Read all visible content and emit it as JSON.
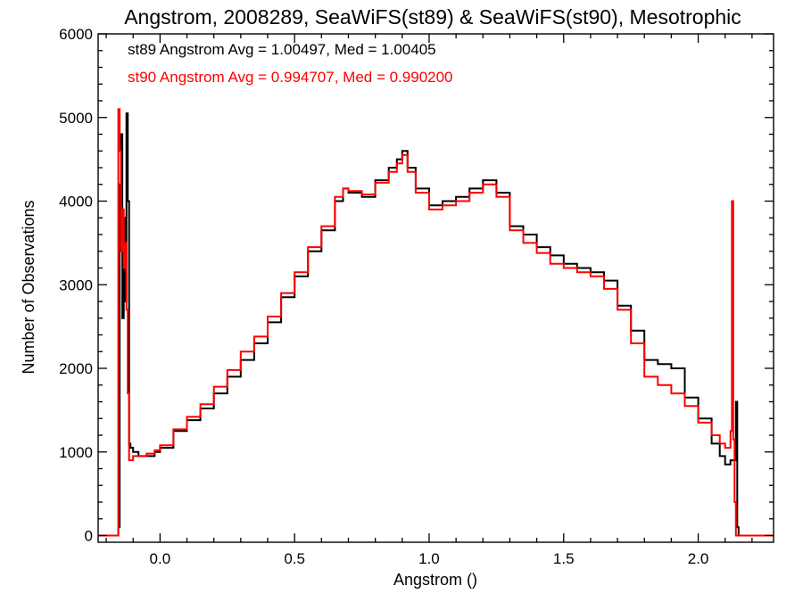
{
  "chart_data": {
    "type": "histogram",
    "title": "Angstrom, 2008289, SeaWiFS(st89) & SeaWiFS(st90), Mesotrophic",
    "xlabel": "Angstrom ()",
    "ylabel": "Number of Observations",
    "xlim": [
      -0.23,
      2.28
    ],
    "ylim": [
      -80,
      6000
    ],
    "xticks": [
      {
        "value": 0.0,
        "label": "0.0"
      },
      {
        "value": 0.5,
        "label": "0.5"
      },
      {
        "value": 1.0,
        "label": "1.0"
      },
      {
        "value": 1.5,
        "label": "1.5"
      },
      {
        "value": 2.0,
        "label": "2.0"
      }
    ],
    "yticks": [
      {
        "value": 0,
        "label": "0"
      },
      {
        "value": 1000,
        "label": "1000"
      },
      {
        "value": 2000,
        "label": "2000"
      },
      {
        "value": 3000,
        "label": "3000"
      },
      {
        "value": 4000,
        "label": "4000"
      },
      {
        "value": 5000,
        "label": "5000"
      },
      {
        "value": 6000,
        "label": "6000"
      }
    ],
    "annotations": [
      {
        "text": "st89 Angstrom Avg = 1.00497, Med = 1.00405",
        "color": "#000000"
      },
      {
        "text": "st90 Angstrom Avg = 0.994707, Med = 0.990200",
        "color": "#ff0000"
      }
    ],
    "series": [
      {
        "color": "#000000",
        "x": [
          -0.23,
          -0.16,
          -0.155,
          -0.15,
          -0.145,
          -0.14,
          -0.135,
          -0.13,
          -0.125,
          -0.12,
          -0.115,
          -0.11,
          -0.1,
          -0.08,
          -0.05,
          -0.02,
          0.0,
          0.05,
          0.1,
          0.15,
          0.2,
          0.25,
          0.3,
          0.35,
          0.4,
          0.45,
          0.5,
          0.55,
          0.6,
          0.65,
          0.68,
          0.7,
          0.75,
          0.8,
          0.85,
          0.88,
          0.9,
          0.92,
          0.95,
          1.0,
          1.05,
          1.1,
          1.15,
          1.2,
          1.25,
          1.3,
          1.35,
          1.4,
          1.45,
          1.5,
          1.55,
          1.6,
          1.65,
          1.7,
          1.75,
          1.8,
          1.85,
          1.9,
          1.95,
          2.0,
          2.05,
          2.08,
          2.1,
          2.12,
          2.14,
          2.145,
          2.15,
          2.28
        ],
        "y": [
          0,
          0,
          100,
          4200,
          4800,
          2600,
          3800,
          2800,
          5050,
          4000,
          1100,
          1050,
          1000,
          950,
          950,
          1000,
          1050,
          1250,
          1380,
          1520,
          1700,
          1900,
          2100,
          2300,
          2550,
          2850,
          3100,
          3400,
          3650,
          4000,
          4150,
          4100,
          4050,
          4250,
          4400,
          4500,
          4600,
          4400,
          4150,
          3950,
          4000,
          4050,
          4150,
          4250,
          4100,
          3700,
          3600,
          3450,
          3350,
          3250,
          3200,
          3150,
          3050,
          2750,
          2450,
          2100,
          2050,
          2000,
          1650,
          1400,
          1100,
          950,
          850,
          900,
          1600,
          100,
          0,
          0
        ]
      },
      {
        "color": "#ff0000",
        "x": [
          -0.23,
          -0.16,
          -0.155,
          -0.15,
          -0.145,
          -0.14,
          -0.135,
          -0.13,
          -0.125,
          -0.12,
          -0.115,
          -0.11,
          -0.1,
          -0.08,
          -0.05,
          -0.02,
          0.0,
          0.05,
          0.1,
          0.15,
          0.2,
          0.25,
          0.3,
          0.35,
          0.4,
          0.45,
          0.5,
          0.55,
          0.6,
          0.65,
          0.68,
          0.7,
          0.75,
          0.8,
          0.85,
          0.88,
          0.9,
          0.92,
          0.95,
          1.0,
          1.05,
          1.1,
          1.15,
          1.2,
          1.25,
          1.3,
          1.35,
          1.4,
          1.45,
          1.5,
          1.55,
          1.6,
          1.65,
          1.7,
          1.75,
          1.8,
          1.85,
          1.9,
          1.95,
          2.0,
          2.05,
          2.08,
          2.1,
          2.12,
          2.125,
          2.13,
          2.135,
          2.14,
          2.145,
          2.28
        ],
        "y": [
          0,
          0,
          5100,
          4600,
          3400,
          3900,
          3200,
          3500,
          2700,
          1700,
          900,
          900,
          950,
          950,
          980,
          1020,
          1080,
          1270,
          1420,
          1570,
          1780,
          1980,
          2200,
          2380,
          2620,
          2900,
          3150,
          3450,
          3700,
          4050,
          4150,
          4120,
          4080,
          4220,
          4350,
          4450,
          4550,
          4350,
          4100,
          3900,
          3950,
          4000,
          4100,
          4200,
          4050,
          3650,
          3500,
          3380,
          3250,
          3200,
          3150,
          3100,
          2950,
          2700,
          2300,
          1900,
          1800,
          1700,
          1550,
          1350,
          1200,
          1100,
          1050,
          1250,
          4000,
          1150,
          400,
          0,
          0,
          0
        ]
      }
    ]
  }
}
